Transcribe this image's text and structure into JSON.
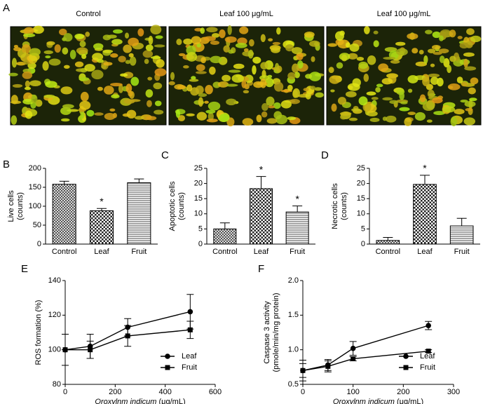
{
  "panel_a": {
    "label": "A",
    "captions": [
      "Control",
      "Leaf 100 μg/mL",
      "Leaf 100 μg/mL"
    ]
  },
  "chart_data": [
    {
      "type": "bar",
      "label": "B",
      "ylabel": [
        "Live cells",
        "(counts)"
      ],
      "categories": [
        "Control",
        "Leaf",
        "Fruit"
      ],
      "values": [
        158,
        88,
        162
      ],
      "errors": [
        8,
        6,
        10
      ],
      "ylim": [
        0,
        200
      ],
      "yticks": [
        0,
        50,
        100,
        150,
        200
      ],
      "annotations": [
        {
          "text": "*",
          "category": "Leaf"
        }
      ]
    },
    {
      "type": "bar",
      "label": "C",
      "ylabel": [
        "Apoptotic cells",
        "(counts)"
      ],
      "categories": [
        "Control",
        "Leaf",
        "Fruit"
      ],
      "values": [
        5,
        18.3,
        10.6
      ],
      "errors": [
        2,
        4,
        2
      ],
      "ylim": [
        0,
        25
      ],
      "yticks": [
        0,
        5,
        10,
        15,
        20,
        25
      ],
      "annotations": [
        {
          "text": "*",
          "category": "Leaf"
        },
        {
          "text": "*",
          "category": "Fruit"
        }
      ]
    },
    {
      "type": "bar",
      "label": "D",
      "ylabel": [
        "Necrotic cells",
        "(counts)"
      ],
      "categories": [
        "Control",
        "Leaf",
        "Fruit"
      ],
      "values": [
        1.2,
        19.7,
        6
      ],
      "errors": [
        1,
        3,
        2.5
      ],
      "ylim": [
        0,
        25
      ],
      "yticks": [
        0,
        5,
        10,
        15,
        20,
        25
      ],
      "annotations": [
        {
          "text": "*",
          "category": "Leaf"
        }
      ]
    },
    {
      "type": "line",
      "label": "E",
      "ylabel": [
        "ROS formation (%)"
      ],
      "xlabel": {
        "italic": "Oroxylnm indicum",
        "unit": "(μg/mL)"
      },
      "x": [
        0,
        100,
        250,
        500
      ],
      "xlim": [
        0,
        600
      ],
      "xticks": [
        0,
        200,
        400,
        600
      ],
      "ylim": [
        80,
        140
      ],
      "yticks": [
        80,
        100,
        120,
        140
      ],
      "legend": "lower right",
      "series": [
        {
          "name": "Leaf",
          "marker": "circle",
          "values": [
            100,
            102,
            113,
            122
          ],
          "errors": [
            9,
            7,
            5,
            10
          ]
        },
        {
          "name": "Fruit",
          "marker": "square",
          "values": [
            100,
            100,
            108,
            111.5
          ],
          "errors": [
            0,
            5,
            6,
            5
          ]
        }
      ]
    },
    {
      "type": "line",
      "label": "F",
      "ylabel": [
        "Caspase 3 activity",
        "(pmole/min/mg protein)"
      ],
      "xlabel": {
        "italic": "Oroxylnm indicum",
        "unit": "(μg/mL)"
      },
      "x": [
        0,
        50,
        100,
        250
      ],
      "xlim": [
        0,
        300
      ],
      "xticks": [
        0,
        100,
        200,
        300
      ],
      "ylim": [
        0.5,
        2.0
      ],
      "yticks": [
        {
          "value": 0.5,
          "label": "0.5"
        },
        {
          "value": 1,
          "label": "1.0"
        },
        {
          "value": 1.5,
          "label": "1.5"
        },
        {
          "value": 2,
          "label": "2.0"
        }
      ],
      "legend": "lower right",
      "series": [
        {
          "name": "Leaf",
          "marker": "circle",
          "values": [
            0.7,
            0.78,
            1.02,
            1.35
          ],
          "errors": [
            0.15,
            0.08,
            0.1,
            0.06
          ]
        },
        {
          "name": "Fruit",
          "marker": "square",
          "values": [
            0.7,
            0.76,
            0.87,
            0.98
          ],
          "errors": [
            0.1,
            0.08,
            0.03,
            0.02
          ]
        }
      ]
    }
  ]
}
